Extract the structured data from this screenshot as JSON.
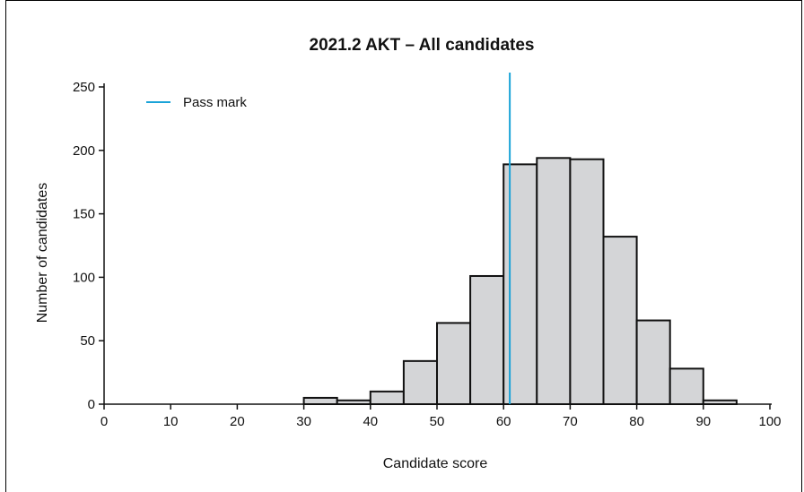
{
  "chart_data": {
    "type": "bar",
    "title": "2021.2 AKT – All candidates",
    "xlabel": "Candidate score",
    "ylabel": "Number of candidates",
    "xlim": [
      0,
      100
    ],
    "ylim": [
      0,
      250
    ],
    "xticks": [
      0,
      10,
      20,
      30,
      40,
      50,
      60,
      70,
      80,
      90,
      100
    ],
    "yticks": [
      0,
      50,
      100,
      150,
      200,
      250
    ],
    "bin_width": 5,
    "bins": [
      {
        "x": 30,
        "value": 5
      },
      {
        "x": 35,
        "value": 3
      },
      {
        "x": 40,
        "value": 10
      },
      {
        "x": 45,
        "value": 34
      },
      {
        "x": 50,
        "value": 64
      },
      {
        "x": 55,
        "value": 101
      },
      {
        "x": 60,
        "value": 189
      },
      {
        "x": 65,
        "value": 194
      },
      {
        "x": 70,
        "value": 193
      },
      {
        "x": 75,
        "value": 132
      },
      {
        "x": 80,
        "value": 66
      },
      {
        "x": 85,
        "value": 28
      },
      {
        "x": 90,
        "value": 3
      }
    ],
    "reference_line": {
      "label": "Pass mark",
      "x": 61,
      "color": "#1aa3d8"
    },
    "bar_fill": "#d4d5d7",
    "bar_stroke": "#111111",
    "grid": false,
    "legend_position": "top-left"
  }
}
